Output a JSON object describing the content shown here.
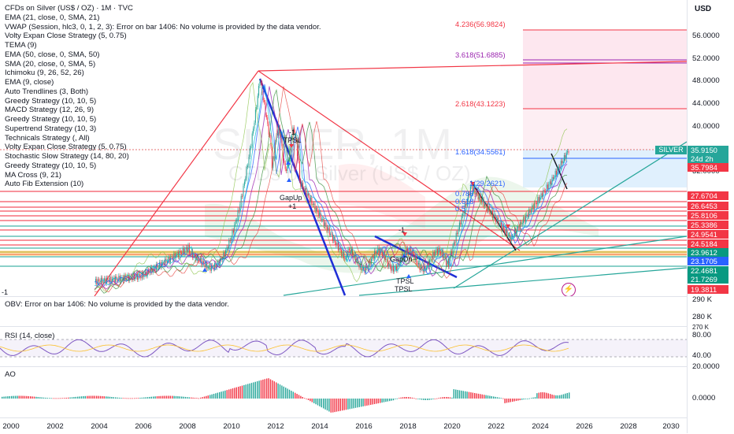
{
  "legend": {
    "title": "CFDs on Silver (US$ / OZ) · 1M · TVC",
    "indicators": [
      "EMA (21, close, 0, SMA, 21)",
      "VWAP (Session, hlc3, 0, 1, 2, 3): Error on bar 1406: No volume is provided by the data vendor.",
      "Volty Expan Close Strategy (5, 0.75)",
      "TEMA (9)",
      "EMA (50, close, 0, SMA, 50)",
      "SMA (20, close, 0, SMA, 5)",
      "Ichimoku (9, 26, 52, 26)",
      "EMA (9, close)",
      "Auto Trendlines (3, Both)",
      "Greedy Strategy (10, 10, 5)",
      "MACD Strategy (12, 26, 9)",
      "Greedy Strategy (10, 10, 5)",
      "Supertrend Strategy (10, 3)",
      "Technicals Strategy (, All)",
      "Volty Expan Close Strategy (5, 0.75)",
      "Stochastic Slow Strategy (14, 80, 20)",
      "Greedy Strategy (10, 10, 5)",
      "MA Cross (9, 21)",
      "Auto Fib Extension (10)"
    ]
  },
  "watermark": {
    "symbol": "SILVER, 1M",
    "name": "CFDs on Silver (US$ / OZ)"
  },
  "price_axis": {
    "currency": "USD",
    "ticks": [
      "56.0000",
      "52.0000",
      "48.0000",
      "44.0000",
      "40.0000",
      "32.0000"
    ],
    "symbol_tag": "SILVER",
    "tags": [
      {
        "value": "35.9150",
        "color": "#26a69a",
        "sub": "24d 2h"
      },
      {
        "value": "35.7984",
        "color": "#f23645"
      },
      {
        "value": "27.6704",
        "color": "#f23645"
      },
      {
        "value": "26.6453",
        "color": "#f23645"
      },
      {
        "value": "25.8106",
        "color": "#f23645"
      },
      {
        "value": "25.3386",
        "color": "#f23645"
      },
      {
        "value": "24.9541",
        "color": "#f23645"
      },
      {
        "value": "24.5184",
        "color": "#f23645"
      },
      {
        "value": "23.9612",
        "color": "#089981"
      },
      {
        "value": "23.1705",
        "color": "#2962ff"
      },
      {
        "value": "22.4681",
        "color": "#089981"
      },
      {
        "value": "21.7269",
        "color": "#089981"
      },
      {
        "value": "19.3811",
        "color": "#f23645"
      }
    ]
  },
  "fib_levels": [
    {
      "label": "4.236(56.9824)",
      "color": "#f23645"
    },
    {
      "label": "3.618(51.6885)",
      "color": "#9c27b0"
    },
    {
      "label": "2.618(43.1223)",
      "color": "#f23645"
    },
    {
      "label": "1.618(34.5561)",
      "color": "#2962ff"
    },
    {
      "label": "1(29.2621)",
      "color": "#2962ff"
    },
    {
      "label": "0.786",
      "color": "#2962ff"
    },
    {
      "label": "0.618",
      "color": "#2962ff"
    },
    {
      "label": "0.5",
      "color": "#2962ff"
    }
  ],
  "chart_annotations": {
    "minus_one_left": "-1",
    "minus_one": "-1",
    "tpsl_1": "TPSL",
    "gapup": "GapUp",
    "plus_one": "+1",
    "gapdn": "GapDn",
    "minus_one_b": "-1",
    "tpsl_2": "TPSL",
    "tpsl_3": "TPSL"
  },
  "obv": {
    "label": "OBV: Error on bar 1406: No volume is provided by the data vendor.",
    "axis": [
      "290 K",
      "280 K",
      "270 K"
    ]
  },
  "rsi": {
    "label": "RSI (14, close)",
    "axis": [
      "80.00",
      "40.00"
    ],
    "ylim": [
      0,
      100
    ]
  },
  "ao": {
    "label": "AO",
    "axis": [
      "20.0000",
      "0.0000"
    ]
  },
  "time_axis": {
    "labels": [
      "2000",
      "2002",
      "2004",
      "2006",
      "2008",
      "2010",
      "2012",
      "2014",
      "2016",
      "2018",
      "2020",
      "2022",
      "2024",
      "2026",
      "2028",
      "2030"
    ]
  },
  "colors": {
    "up": "#26a69a",
    "down": "#f23645",
    "accent": "#2962ff"
  }
}
